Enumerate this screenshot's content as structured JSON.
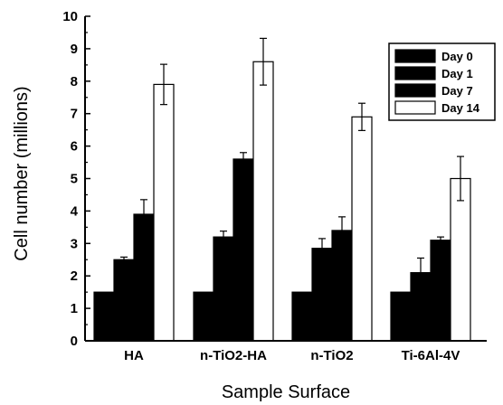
{
  "chart_data": {
    "type": "bar",
    "title": "",
    "xlabel": "Sample Surface",
    "ylabel": "Cell number (millions)",
    "ylim": [
      0,
      10
    ],
    "yticks": [
      "0",
      "1",
      "2",
      "3",
      "4",
      "5",
      "6",
      "7",
      "8",
      "9",
      "10"
    ],
    "categories": [
      "HA",
      "n-TiO2-HA",
      "n-TiO2",
      "Ti-6Al-4V"
    ],
    "series": [
      {
        "name": "Day 0",
        "values": [
          1.5,
          1.5,
          1.5,
          1.5
        ],
        "errors": [
          0,
          0,
          0,
          0
        ],
        "color": "#000000"
      },
      {
        "name": "Day 1",
        "values": [
          2.5,
          3.2,
          2.85,
          2.1
        ],
        "errors": [
          0.08,
          0.18,
          0.3,
          0.45
        ],
        "color": "#000000"
      },
      {
        "name": "Day 7",
        "values": [
          3.9,
          5.6,
          3.4,
          3.1
        ],
        "errors": [
          0.45,
          0.2,
          0.42,
          0.1
        ],
        "color": "#000000"
      },
      {
        "name": "Day 14",
        "values": [
          7.9,
          8.6,
          6.9,
          5.0
        ],
        "errors": [
          0.62,
          0.72,
          0.42,
          0.68
        ],
        "color": "#ffffff"
      }
    ],
    "legend_position": "top-right",
    "grid": false
  }
}
